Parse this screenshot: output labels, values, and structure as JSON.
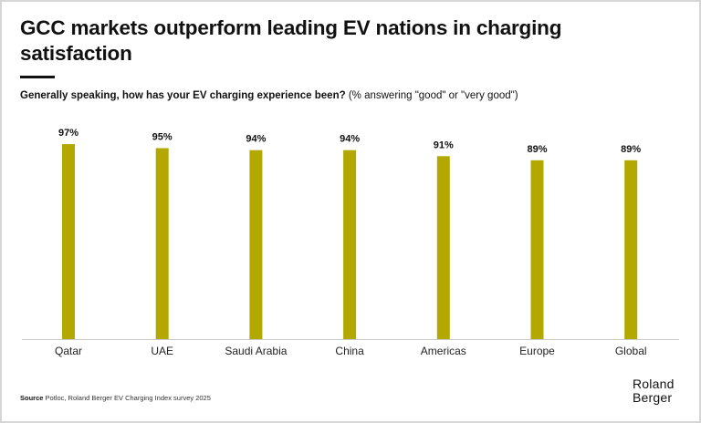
{
  "title": "GCC markets outperform leading EV nations in charging satisfaction",
  "subtitle": {
    "question": "Generally speaking, how has your EV charging experience been?",
    "note": "(% answering \"good\" or \"very good\")"
  },
  "footer": {
    "source_label": "Source",
    "source_text": "Potloc, Roland Berger EV Charging Index survey 2025"
  },
  "logo": {
    "line1": "Roland",
    "line2": "Berger"
  },
  "colors": {
    "bar": "#B3A800",
    "axis": "#c8c8c8",
    "text": "#111111"
  },
  "chart_data": {
    "type": "bar",
    "title": "GCC markets outperform leading EV nations in charging satisfaction",
    "subtitle": "Generally speaking, how has your EV charging experience been? (% answering \"good\" or \"very good\")",
    "xlabel": "",
    "ylabel": "",
    "unit": "%",
    "categories": [
      "Qatar",
      "UAE",
      "Saudi Arabia",
      "China",
      "Americas",
      "Europe",
      "Global"
    ],
    "values": [
      97,
      95,
      94,
      94,
      91,
      89,
      89
    ],
    "data_labels": [
      "97%",
      "95%",
      "94%",
      "94%",
      "91%",
      "89%",
      "89%"
    ],
    "ylim": [
      0,
      100
    ],
    "grid": false,
    "legend": "none",
    "y_axis_visible": false
  }
}
